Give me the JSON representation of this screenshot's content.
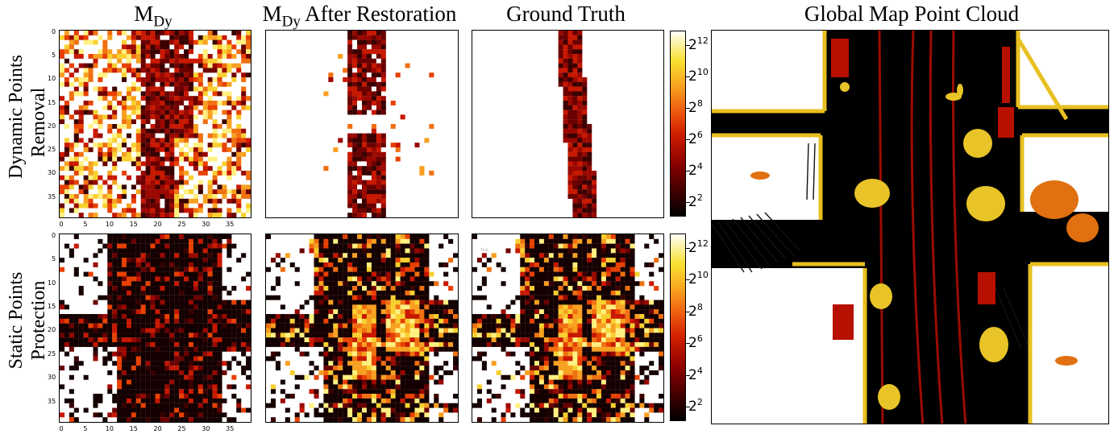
{
  "titles": {
    "m_dy_main": "M",
    "m_dy_sub": "Dy",
    "restored_main": "M",
    "restored_sub": "Dy",
    "restored_rest": " After Restoration",
    "ground_truth": "Ground Truth",
    "global_map": "Global Map Point Cloud"
  },
  "row_labels": {
    "row1_line1": "Dynamic Points",
    "row1_line2": "Removal",
    "row2_line1": "Static Points",
    "row2_line2": "Protection"
  },
  "axes": {
    "y_ticks": [
      "0",
      "5",
      "10",
      "15",
      "20",
      "25",
      "30",
      "35"
    ],
    "x_ticks": [
      "0",
      "5",
      "10",
      "15",
      "20",
      "25",
      "30",
      "35"
    ]
  },
  "colorbar": {
    "base": "2",
    "exponents": [
      "12",
      "10",
      "8",
      "6",
      "4",
      "2"
    ],
    "colormap": "hot"
  },
  "inset_text": "Text",
  "colors": {
    "dark_red": "#7a0000",
    "red": "#c81000",
    "orange": "#f07010",
    "yellow": "#f8e030",
    "white": "#ffffff",
    "black": "#000000"
  }
}
